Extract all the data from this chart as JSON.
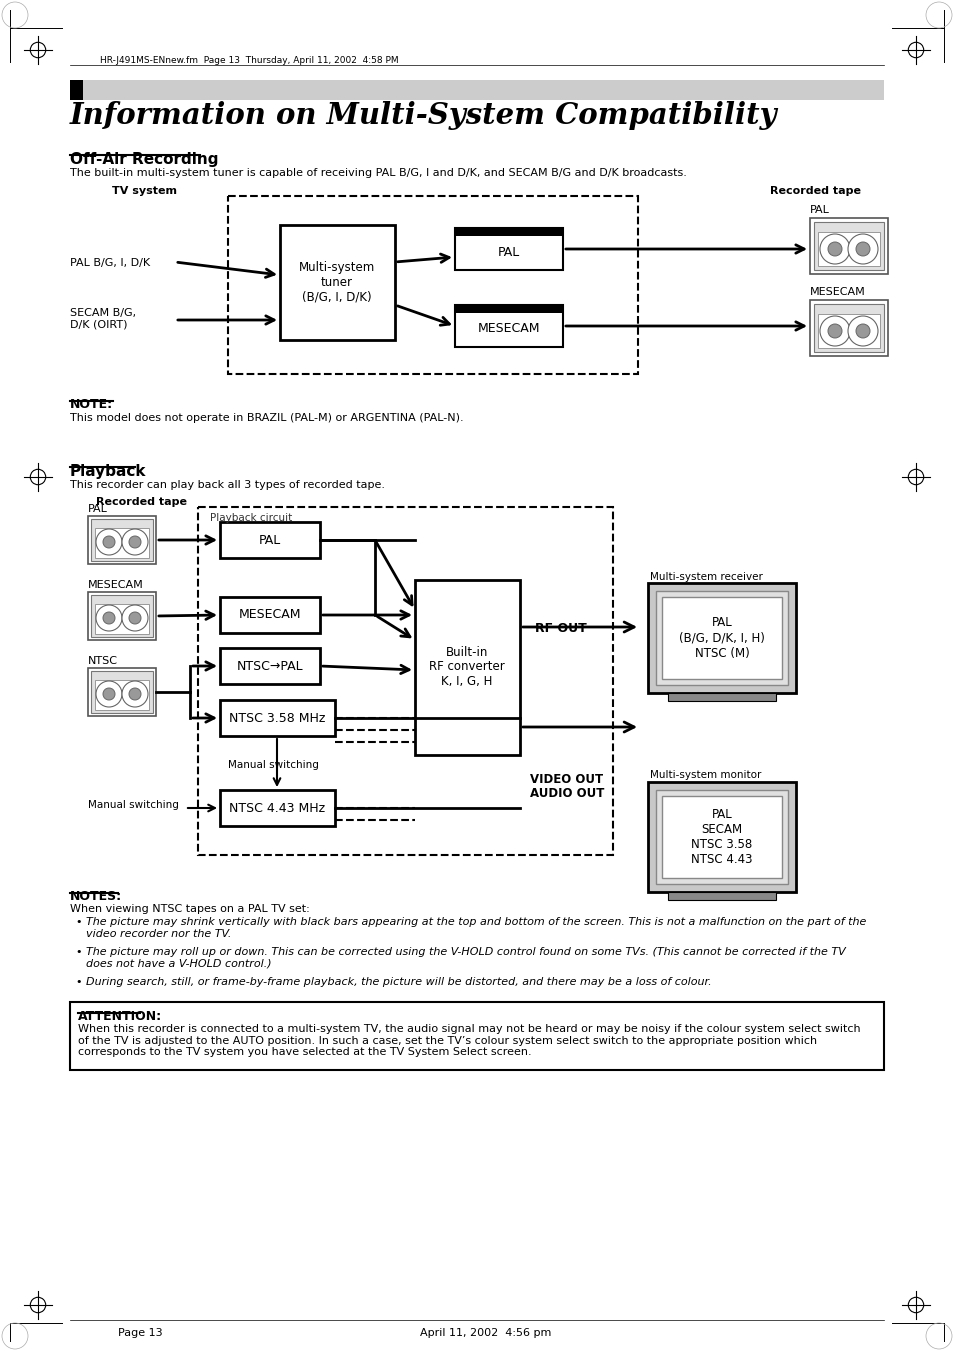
{
  "page_title": "Information on Multi-System Compatibility",
  "header_text": "HR-J491MS-ENnew.fm  Page 13  Thursday, April 11, 2002  4:58 PM",
  "section1_title": "Off-Air Recording",
  "section1_desc": "The built-in multi-system tuner is capable of receiving PAL B/G, I and D/K, and SECAM B/G and D/K broadcasts.",
  "tv_system_label": "TV system",
  "recorded_tape_label": "Recorded tape",
  "pal_input": "PAL B/G, I, D/K",
  "secam_input": "SECAM B/G,\nD/K (OIRT)",
  "tuner_box": "Multi-system\ntuner\n(B/G, I, D/K)",
  "output_pal": "PAL",
  "output_mesecam": "MESECAM",
  "note_title": "NOTE:",
  "note_text": "This model does not operate in BRAZIL (PAL-M) or ARGENTINA (PAL-N).",
  "section2_title": "Playback",
  "section2_desc": "This recorder can play back all 3 types of recorded tape.",
  "recorded_tape_label2": "Recorded tape",
  "playback_circuit_label": "Playback circuit",
  "pb_pal": "PAL",
  "pb_mesecam": "MESECAM",
  "pb_ntsc_pal": "NTSC→PAL",
  "pb_ntsc358": "NTSC 3.58 MHz",
  "pb_ntsc443": "NTSC 4.43 MHz",
  "manual_switching1": "Manual switching",
  "manual_switching2": "Manual switching",
  "builtin_rf": "Built-in\nRF converter\nK, I, G, H",
  "rf_out": "RF OUT",
  "video_out": "VIDEO OUT",
  "audio_out": "AUDIO OUT",
  "multisystem_receiver": "Multi-system receiver",
  "receiver_text": "PAL\n(B/G, D/K, I, H)\nNTSC (M)",
  "multisystem_monitor": "Multi-system monitor",
  "monitor_text": "PAL\nSECAM\nNTSC 3.58\nNTSC 4.43",
  "tape_pal": "PAL",
  "tape_mesecam": "MESECAM",
  "tape_ntsc": "NTSC",
  "notes_title": "NOTES:",
  "notes_when": "When viewing NTSC tapes on a PAL TV set:",
  "notes_bullets": [
    "The picture may shrink vertically with black bars appearing at the top and bottom of the screen. This is not a malfunction on the part of the\nvideo recorder nor the TV.",
    "The picture may roll up or down. This can be corrected using the V-HOLD control found on some TVs. (This cannot be corrected if the TV\ndoes not have a V-HOLD control.)",
    "During search, still, or frame-by-frame playback, the picture will be distorted, and there may be a loss of colour."
  ],
  "attention_title": "ATTENTION:",
  "attention_text": "When this recorder is connected to a multi-system TV, the audio signal may not be heard or may be noisy if the colour system select switch\nof the TV is adjusted to the AUTO position. In such a case, set the TV’s colour system select switch to the appropriate position which\ncorresponds to the TV system you have selected at the TV System Select screen.",
  "footer_left": "Page 13",
  "footer_center": "April 11, 2002  4:56 pm",
  "bg_color": "#ffffff",
  "gray_bar_color": "#cccccc"
}
